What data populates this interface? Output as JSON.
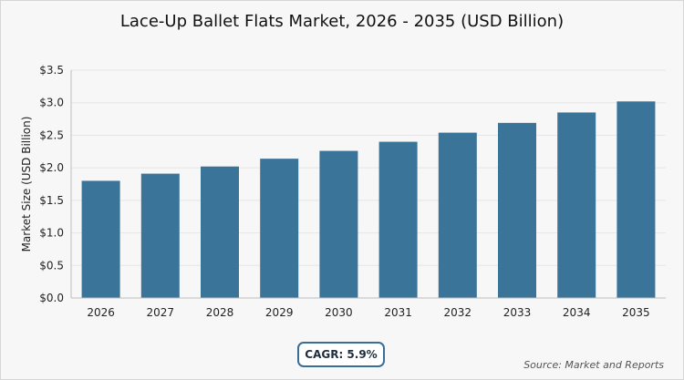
{
  "chart_data": {
    "type": "bar",
    "title": "Lace-Up Ballet Flats Market, 2026 - 2035 (USD Billion)",
    "ylabel": "Market Size (USD Billion)",
    "xlabel": "",
    "categories": [
      "2026",
      "2027",
      "2028",
      "2029",
      "2030",
      "2031",
      "2032",
      "2033",
      "2034",
      "2035"
    ],
    "values": [
      1.8,
      1.91,
      2.02,
      2.14,
      2.26,
      2.4,
      2.54,
      2.69,
      2.85,
      3.02
    ],
    "ylim": [
      0,
      3.5
    ],
    "yticks": [
      "$0.0",
      "$0.5",
      "$1.0",
      "$1.5",
      "$2.0",
      "$2.5",
      "$3.0",
      "$3.5"
    ],
    "ytick_values": [
      0,
      0.5,
      1.0,
      1.5,
      2.0,
      2.5,
      3.0,
      3.5
    ],
    "grid": true,
    "bar_color": "#3b7499"
  },
  "cagr_label": "CAGR: 5.9%",
  "source": "Source: Market and Reports"
}
